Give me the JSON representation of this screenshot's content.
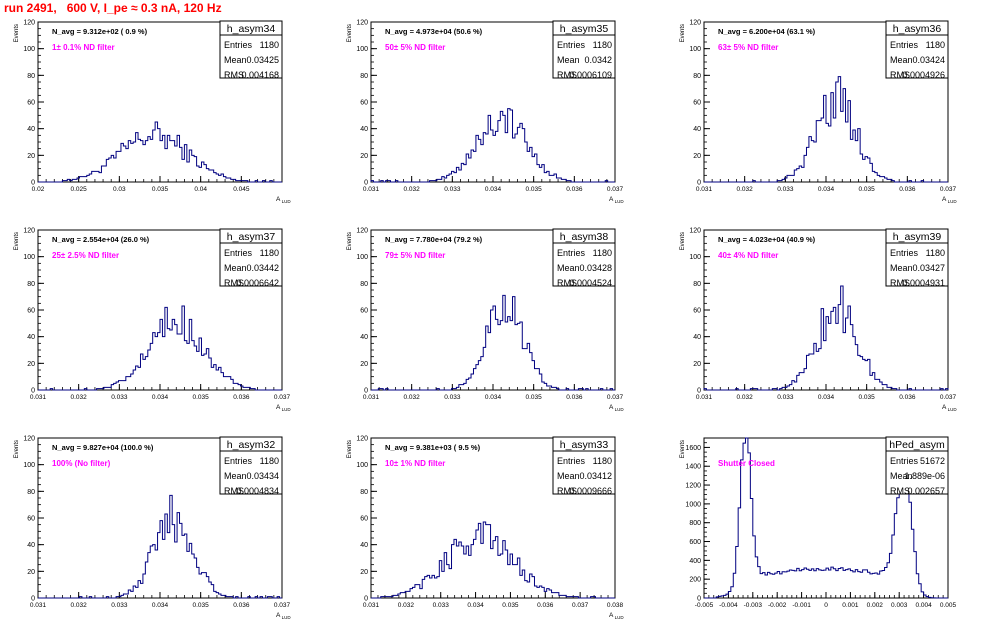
{
  "title": "run 2491,   600 V, I_pe ≈ 0.3 nA, 120 Hz",
  "colors": {
    "title": "#ff0000",
    "hist": "#000080",
    "annot": "#ff00ff",
    "frame": "#000000"
  },
  "chart_data": [
    {
      "type": "histogram",
      "name": "h_asym34",
      "navg": "N_avg = 9.312e+02 ( 0.9 %)",
      "filter": "1± 0.1% ND filter",
      "stats": {
        "Entries": "1180",
        "Mean": "0.03425",
        "RMS": "0.004168"
      },
      "ylabel": "Events",
      "xlabel": "A_LUD",
      "ylim": [
        0,
        120
      ],
      "yticks": [
        "0",
        "20",
        "40",
        "60",
        "80",
        "100",
        "120"
      ],
      "xlim": [
        0.02,
        0.05
      ],
      "xticks": [
        "0.02",
        "0.025",
        "0.03",
        "0.035",
        "0.04",
        "0.045"
      ],
      "xtick_values": [
        0.02,
        0.025,
        0.03,
        0.035,
        0.04,
        0.045
      ],
      "mean": 0.03425,
      "rms": 0.004168,
      "peak": 35
    },
    {
      "type": "histogram",
      "name": "h_asym35",
      "navg": "N_avg = 4.973e+04 (50.6 %)",
      "filter": "50± 5% ND filter",
      "stats": {
        "Entries": "1180",
        "Mean": "0.0342",
        "RMS": "0.0006109"
      },
      "ylabel": "Events",
      "xlabel": "A_LUD",
      "ylim": [
        0,
        120
      ],
      "yticks": [
        "0",
        "20",
        "40",
        "60",
        "80",
        "100",
        "120"
      ],
      "xlim": [
        0.031,
        0.037
      ],
      "xticks": [
        "0.031",
        "0.032",
        "0.033",
        "0.034",
        "0.035",
        "0.036",
        "0.037"
      ],
      "xtick_values": [
        0.031,
        0.032,
        0.033,
        0.034,
        0.035,
        0.036,
        0.037
      ],
      "mean": 0.0342,
      "rms": 0.0006109,
      "peak": 48
    },
    {
      "type": "histogram",
      "name": "h_asym36",
      "navg": "N_avg = 6.200e+04 (63.1 %)",
      "filter": "63± 5% ND filter",
      "stats": {
        "Entries": "1180",
        "Mean": "0.03424",
        "RMS": "0.0004926"
      },
      "ylabel": "Events",
      "xlabel": "A_LUD",
      "ylim": [
        0,
        120
      ],
      "yticks": [
        "0",
        "20",
        "40",
        "60",
        "80",
        "100",
        "120"
      ],
      "xlim": [
        0.031,
        0.037
      ],
      "xticks": [
        "0.031",
        "0.032",
        "0.033",
        "0.034",
        "0.035",
        "0.036",
        "0.037"
      ],
      "xtick_values": [
        0.031,
        0.032,
        0.033,
        0.034,
        0.035,
        0.036,
        0.037
      ],
      "mean": 0.03424,
      "rms": 0.0004926,
      "peak": 62
    },
    {
      "type": "histogram",
      "name": "h_asym37",
      "navg": "N_avg = 2.554e+04 (26.0 %)",
      "filter": "25± 2.5% ND filter",
      "stats": {
        "Entries": "1180",
        "Mean": "0.03442",
        "RMS": "0.0006642"
      },
      "ylabel": "Events",
      "xlabel": "A_LUD",
      "ylim": [
        0,
        120
      ],
      "yticks": [
        "0",
        "20",
        "40",
        "60",
        "80",
        "100",
        "120"
      ],
      "xlim": [
        0.031,
        0.037
      ],
      "xticks": [
        "0.031",
        "0.032",
        "0.033",
        "0.034",
        "0.035",
        "0.036",
        "0.037"
      ],
      "xtick_values": [
        0.031,
        0.032,
        0.033,
        0.034,
        0.035,
        0.036,
        0.037
      ],
      "mean": 0.03442,
      "rms": 0.0006642,
      "peak": 52
    },
    {
      "type": "histogram",
      "name": "h_asym38",
      "navg": "N_avg = 7.780e+04 (79.2 %)",
      "filter": "79± 5% ND filter",
      "stats": {
        "Entries": "1180",
        "Mean": "0.03428",
        "RMS": "0.0004524"
      },
      "ylabel": "Events",
      "xlabel": "A_LUD",
      "ylim": [
        0,
        120
      ],
      "yticks": [
        "0",
        "20",
        "40",
        "60",
        "80",
        "100",
        "120"
      ],
      "xlim": [
        0.031,
        0.037
      ],
      "xticks": [
        "0.031",
        "0.032",
        "0.033",
        "0.034",
        "0.035",
        "0.036",
        "0.037"
      ],
      "xtick_values": [
        0.031,
        0.032,
        0.033,
        0.034,
        0.035,
        0.036,
        0.037
      ],
      "mean": 0.03428,
      "rms": 0.0004524,
      "peak": 66
    },
    {
      "type": "histogram",
      "name": "h_asym39",
      "navg": "N_avg = 4.023e+04 (40.9 %)",
      "filter": "40± 4% ND filter",
      "stats": {
        "Entries": "1180",
        "Mean": "0.03427",
        "RMS": "0.0004931"
      },
      "ylabel": "Events",
      "xlabel": "A_LUD",
      "ylim": [
        0,
        120
      ],
      "yticks": [
        "0",
        "20",
        "40",
        "60",
        "80",
        "100",
        "120"
      ],
      "xlim": [
        0.031,
        0.037
      ],
      "xticks": [
        "0.031",
        "0.032",
        "0.033",
        "0.034",
        "0.035",
        "0.036",
        "0.037"
      ],
      "xtick_values": [
        0.031,
        0.032,
        0.033,
        0.034,
        0.035,
        0.036,
        0.037
      ],
      "mean": 0.03427,
      "rms": 0.0004931,
      "peak": 62
    },
    {
      "type": "histogram",
      "name": "h_asym32",
      "navg": "N_avg = 9.827e+04 (100.0 %)",
      "filter": "100% (No filter)",
      "stats": {
        "Entries": "1180",
        "Mean": "0.03434",
        "RMS": "0.0004834"
      },
      "ylabel": "Events",
      "xlabel": "A_LUD",
      "ylim": [
        0,
        120
      ],
      "yticks": [
        "0",
        "20",
        "40",
        "60",
        "80",
        "100",
        "120"
      ],
      "xlim": [
        0.031,
        0.037
      ],
      "xticks": [
        "0.031",
        "0.032",
        "0.033",
        "0.034",
        "0.035",
        "0.036",
        "0.037"
      ],
      "xtick_values": [
        0.031,
        0.032,
        0.033,
        0.034,
        0.035,
        0.036,
        0.037
      ],
      "mean": 0.03434,
      "rms": 0.0004834,
      "peak": 60
    },
    {
      "type": "histogram",
      "name": "h_asym33",
      "navg": "N_avg = 9.381e+03 ( 9.5 %)",
      "filter": "10± 1% ND filter",
      "stats": {
        "Entries": "1180",
        "Mean": "0.03412",
        "RMS": "0.0009666"
      },
      "ylabel": "Events",
      "xlabel": "A_LUD",
      "ylim": [
        0,
        120
      ],
      "yticks": [
        "0",
        "20",
        "40",
        "60",
        "80",
        "100",
        "120"
      ],
      "xlim": [
        0.031,
        0.038
      ],
      "xticks": [
        "0.031",
        "0.032",
        "0.033",
        "0.034",
        "0.035",
        "0.036",
        "0.037",
        "0.038"
      ],
      "xtick_values": [
        0.031,
        0.032,
        0.033,
        0.034,
        0.035,
        0.036,
        0.037,
        0.038
      ],
      "mean": 0.03412,
      "rms": 0.0009666,
      "peak": 46
    },
    {
      "type": "histogram",
      "name": "hPed_asym",
      "navg": "",
      "filter": "Shutter Closed",
      "stats": {
        "Entries": "51672",
        "Mean": "1.889e-06",
        "RMS": "0.002657"
      },
      "ylabel": "Events",
      "xlabel": "",
      "ylim": [
        0,
        1700
      ],
      "yticks": [
        "0",
        "200",
        "400",
        "600",
        "800",
        "1000",
        "1200",
        "1400",
        "1600"
      ],
      "xlim": [
        -0.005,
        0.005
      ],
      "xticks": [
        "-0.005",
        "-0.004",
        "-0.003",
        "-0.002",
        "-0.001",
        "0",
        "0.001",
        "0.002",
        "0.003",
        "0.004",
        "0.005"
      ],
      "xtick_values": [
        -0.005,
        -0.004,
        -0.003,
        -0.002,
        -0.001,
        0,
        0.001,
        0.002,
        0.003,
        0.004,
        0.005
      ],
      "mean": 0.0,
      "rms": 0.002657,
      "peak": 1650,
      "bimodal": true
    }
  ]
}
